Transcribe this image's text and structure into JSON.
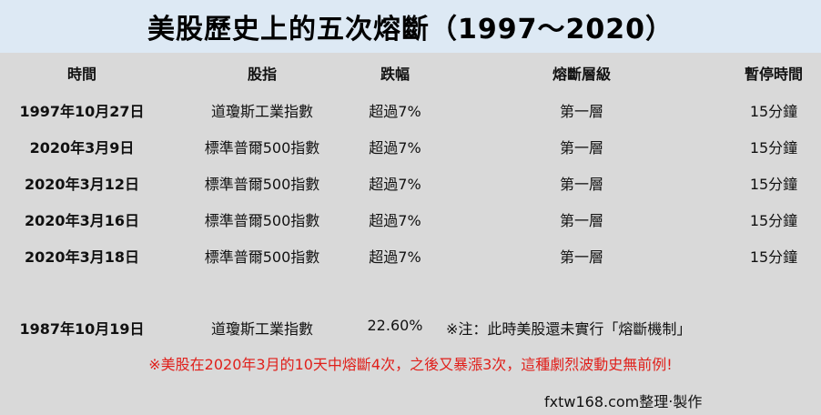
{
  "title": "美股歷史上的五次熔斷（1997～2020）",
  "headers": {
    "date": "時間",
    "index": "股指",
    "drop": "跌幅",
    "level": "熔斷層級",
    "halt": "暫停時間"
  },
  "rows": [
    {
      "date": "1997年10月27日",
      "index": "道瓊斯工業指數",
      "drop": "超過7%",
      "level": "第一層",
      "halt": "15分鐘"
    },
    {
      "date": "2020年3月9日",
      "index": "標準普爾500指數",
      "drop": "超過7%",
      "level": "第一層",
      "halt": "15分鐘"
    },
    {
      "date": "2020年3月12日",
      "index": "標準普爾500指數",
      "drop": "超過7%",
      "level": "第一層",
      "halt": "15分鐘"
    },
    {
      "date": "2020年3月16日",
      "index": "標準普爾500指數",
      "drop": "超過7%",
      "level": "第一層",
      "halt": "15分鐘"
    },
    {
      "date": "2020年3月18日",
      "index": "標準普爾500指數",
      "drop": "超過7%",
      "level": "第一層",
      "halt": "15分鐘"
    }
  ],
  "extra_row": {
    "date": "1987年10月19日",
    "index": "道瓊斯工業指數",
    "drop": "22.60%",
    "note": "※注：此時美股還未實行「熔斷機制」"
  },
  "footnote": "※美股在2020年3月的10天中熔斷4次，之後又暴漲3次，這種劇烈波動史無前例!",
  "credit": "fxtw168.com整理‧製作",
  "colors": {
    "title_bg": "#dde9f4",
    "body_bg": "#d9d9d9",
    "footnote": "#e0201b"
  }
}
